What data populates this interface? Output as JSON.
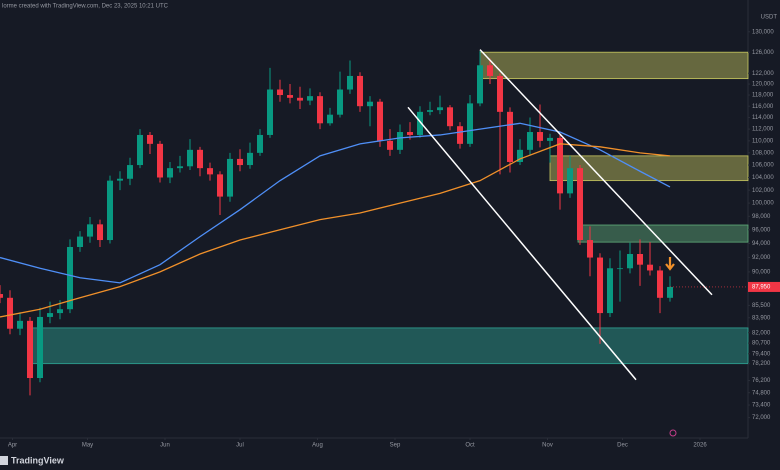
{
  "chart_data": {
    "type": "candlestick",
    "header": "lorme created with TradingView.com, Dec 23, 2025 10:21 UTC",
    "currency": "USDT",
    "brand": "TradingView",
    "log_scale": true,
    "up_color": "#089981",
    "down_color": "#f23645",
    "categories": [
      null,
      null,
      null,
      null,
      null,
      null,
      null,
      null,
      null,
      null,
      null,
      null,
      null,
      null,
      null,
      null,
      null,
      null,
      null,
      null,
      null,
      null,
      null,
      null,
      null,
      null,
      null,
      null,
      null,
      null,
      null,
      null,
      null,
      null,
      null,
      null,
      null,
      null,
      null,
      null,
      null,
      null,
      null,
      null,
      null,
      null,
      null,
      null,
      null,
      null,
      null,
      null,
      null,
      null,
      null,
      null,
      null,
      null,
      null,
      null,
      null,
      null,
      null,
      null,
      null,
      null,
      null,
      null
    ],
    "open": [
      87000,
      86500,
      82500,
      83500,
      76500,
      84000,
      84500,
      85000,
      93500,
      95000,
      96800,
      94500,
      103500,
      103800,
      106000,
      111000,
      109500,
      104000,
      105500,
      105800,
      108500,
      105500,
      104500,
      101000,
      107000,
      106000,
      108000,
      111000,
      119000,
      118000,
      117500,
      117000,
      117800,
      113000,
      114500,
      119000,
      121500,
      116000,
      116800,
      110000,
      108500,
      111500,
      111000,
      115000,
      115300,
      115800,
      112500,
      109500,
      116500,
      123500,
      121500,
      115000,
      106500,
      108500,
      111500,
      110000,
      110500,
      101500,
      105500,
      94500,
      92000,
      84500,
      90500,
      90500,
      92500,
      91000,
      90200,
      86500
    ],
    "high": [
      88200,
      87500,
      84600,
      84000,
      85200,
      86000,
      86200,
      94600,
      95800,
      97900,
      97500,
      104300,
      105000,
      107200,
      112000,
      111500,
      110000,
      106500,
      107500,
      110300,
      109000,
      106400,
      105000,
      108000,
      108600,
      109700,
      112000,
      123000,
      120800,
      120000,
      119500,
      119200,
      118500,
      115700,
      122300,
      124400,
      122200,
      117800,
      117300,
      112000,
      112800,
      113200,
      116000,
      116800,
      117900,
      116200,
      113200,
      118000,
      126200,
      124800,
      122000,
      115800,
      110300,
      114000,
      116300,
      111200,
      111000,
      107500,
      106000,
      96500,
      92600,
      91900,
      93000,
      94100,
      94600,
      94200,
      90800,
      89400
    ],
    "low": [
      85800,
      81800,
      81700,
      74500,
      76000,
      83200,
      83700,
      84500,
      92800,
      94100,
      93500,
      94000,
      102000,
      102800,
      105500,
      107800,
      103200,
      103100,
      104800,
      105200,
      104200,
      103500,
      98200,
      100200,
      105000,
      105400,
      107500,
      110500,
      116800,
      116500,
      115500,
      116200,
      112000,
      112600,
      114000,
      118200,
      115000,
      112500,
      109000,
      107500,
      107800,
      110200,
      110500,
      114400,
      114600,
      111800,
      108700,
      109000,
      116000,
      120000,
      104500,
      104800,
      106000,
      107700,
      108900,
      106400,
      99000,
      100800,
      93800,
      89400,
      80600,
      84000,
      86000,
      89800,
      88100,
      89500,
      84500,
      86000
    ],
    "close": [
      86500,
      82500,
      83500,
      76500,
      84000,
      84500,
      85000,
      93500,
      95000,
      96800,
      94500,
      103500,
      103800,
      106000,
      111000,
      109500,
      104000,
      105500,
      105800,
      108500,
      105500,
      104500,
      101000,
      107000,
      106000,
      108000,
      111000,
      119000,
      118000,
      117500,
      117000,
      117800,
      113000,
      114500,
      119000,
      121500,
      116000,
      116800,
      110000,
      108500,
      111500,
      111000,
      115000,
      115300,
      115800,
      112500,
      109500,
      116500,
      123500,
      121500,
      115000,
      106500,
      108500,
      111500,
      110000,
      110500,
      101500,
      105500,
      94500,
      92000,
      84500,
      90500,
      90500,
      92500,
      91000,
      90200,
      86500,
      87950
    ],
    "last_price": {
      "value": 87950,
      "label": "87,950"
    },
    "lines": [
      {
        "color": "#4f8ff7",
        "x": [
          0,
          4,
          8,
          12,
          16,
          20,
          24,
          28,
          32,
          36,
          40,
          44,
          48,
          52,
          56,
          60,
          64,
          67
        ],
        "values": [
          92000,
          90500,
          89200,
          88500,
          91000,
          95000,
          99000,
          103500,
          107500,
          109500,
          110500,
          111000,
          112000,
          113000,
          111500,
          108500,
          105000,
          102500
        ]
      },
      {
        "color": "#f0902a",
        "x": [
          0,
          4,
          8,
          12,
          16,
          20,
          24,
          28,
          32,
          36,
          40,
          44,
          48,
          52,
          56,
          60,
          64,
          67
        ],
        "values": [
          84000,
          85000,
          86500,
          88000,
          90000,
          92500,
          94500,
          96000,
          97500,
          98500,
          100000,
          101500,
          103500,
          107000,
          109500,
          109000,
          108000,
          107500
        ]
      }
    ],
    "zones": [
      {
        "color": "#c8c860",
        "x": [
          48,
          74.8
        ],
        "y": [
          121000,
          126000
        ]
      },
      {
        "color": "#c8c860",
        "x": [
          55,
          74.8
        ],
        "y": [
          103500,
          107500
        ]
      },
      {
        "color": "#5fae7a",
        "x": [
          57.8,
          74.8
        ],
        "y": [
          94200,
          96700
        ]
      },
      {
        "color": "#2fa595",
        "x": [
          3,
          74.8
        ],
        "y": [
          78200,
          82600
        ]
      }
    ],
    "trendlines": [
      {
        "color": "#ffffff",
        "x": [
          40.8,
          63.6
        ],
        "y": [
          115800,
          76300
        ]
      },
      {
        "color": "#ffffff",
        "x": [
          48,
          71.2
        ],
        "y": [
          126500,
          86900
        ]
      }
    ],
    "xlim": [
      0,
      74.8
    ],
    "xticks": [
      {
        "value": 1.25,
        "label": "Apr"
      },
      {
        "value": 8.75,
        "label": "May"
      },
      {
        "value": 16.5,
        "label": "Jun"
      },
      {
        "value": 24,
        "label": "Jul"
      },
      {
        "value": 31.75,
        "label": "Aug"
      },
      {
        "value": 39.5,
        "label": "Sep"
      },
      {
        "value": 47,
        "label": "Oct"
      },
      {
        "value": 54.75,
        "label": "Nov"
      },
      {
        "value": 62.25,
        "label": "Dec"
      },
      {
        "value": 70,
        "label": "2026"
      }
    ],
    "ylim": [
      70000,
      134000
    ],
    "yticks": [
      {
        "value": 130000,
        "label": "130,000"
      },
      {
        "value": 126000,
        "label": "126,000"
      },
      {
        "value": 122000,
        "label": "122,000"
      },
      {
        "value": 120000,
        "label": "120,000"
      },
      {
        "value": 118000,
        "label": "118,000"
      },
      {
        "value": 116000,
        "label": "116,000"
      },
      {
        "value": 114000,
        "label": "114,000"
      },
      {
        "value": 112000,
        "label": "112,000"
      },
      {
        "value": 110000,
        "label": "110,000"
      },
      {
        "value": 108000,
        "label": "108,000"
      },
      {
        "value": 106000,
        "label": "106,000"
      },
      {
        "value": 104000,
        "label": "104,000"
      },
      {
        "value": 102000,
        "label": "102,000"
      },
      {
        "value": 100000,
        "label": "100,000"
      },
      {
        "value": 98000,
        "label": "98,000"
      },
      {
        "value": 96000,
        "label": "96,000"
      },
      {
        "value": 94000,
        "label": "94,000"
      },
      {
        "value": 92000,
        "label": "92,000"
      },
      {
        "value": 90000,
        "label": "90,000"
      },
      {
        "value": 85500,
        "label": "85,500"
      },
      {
        "value": 83900,
        "label": "83,900"
      },
      {
        "value": 82000,
        "label": "82,000"
      },
      {
        "value": 80700,
        "label": "80,700"
      },
      {
        "value": 79400,
        "label": "79,400"
      },
      {
        "value": 78200,
        "label": "78,200"
      },
      {
        "value": 76200,
        "label": "76,200"
      },
      {
        "value": 74800,
        "label": "74,800"
      },
      {
        "value": 73400,
        "label": "73,400"
      },
      {
        "value": 72000,
        "label": "72,000"
      }
    ]
  }
}
